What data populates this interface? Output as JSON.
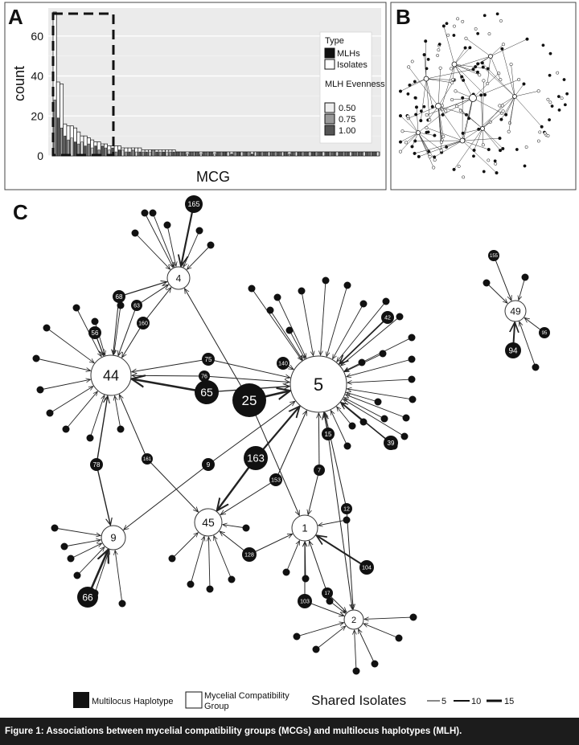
{
  "panels": {
    "a": "A",
    "b": "B",
    "c": "C"
  },
  "chart_data": {
    "type": "bar",
    "xlabel": "MCG",
    "ylabel": "count",
    "yticks": [
      0,
      20,
      40,
      60
    ],
    "ylim": [
      0,
      74
    ],
    "legend": {
      "type_title": "Type",
      "type_items": [
        "MLHs",
        "Isolates"
      ],
      "evenness_title": "MLH Evenness",
      "evenness_items": [
        "0.50",
        "0.75",
        "1.00"
      ]
    },
    "isolates": [
      72,
      37,
      36,
      16,
      15,
      15,
      14,
      12,
      10,
      10,
      9,
      8,
      7,
      7,
      6,
      6,
      5,
      5,
      5,
      5,
      4,
      4,
      4,
      4,
      4,
      4,
      3,
      3,
      3,
      3,
      3,
      3,
      3,
      3,
      3,
      3,
      2,
      2,
      2,
      2,
      2,
      2,
      2,
      2,
      2,
      2,
      2,
      2,
      2,
      2,
      2,
      2,
      2,
      2,
      2,
      2,
      2,
      2,
      2,
      2,
      2,
      2,
      2,
      2,
      2,
      2,
      2,
      2,
      2,
      2,
      2,
      2,
      2,
      2,
      2,
      2,
      2,
      2,
      2,
      2,
      2,
      2,
      2,
      2,
      2,
      2,
      2,
      2,
      2,
      2,
      2,
      2,
      2,
      2,
      2,
      2
    ],
    "mlhs": [
      28,
      19,
      14,
      10,
      8,
      9,
      7,
      6,
      7,
      5,
      6,
      4,
      5,
      3,
      5,
      4,
      3,
      4,
      2,
      3,
      3,
      2,
      2,
      3,
      2,
      2,
      2,
      2,
      2,
      3,
      2,
      2,
      2,
      2,
      2,
      2,
      2,
      2,
      2,
      1,
      2,
      2,
      2,
      1,
      2,
      2,
      2,
      1,
      2,
      2,
      2,
      2,
      1,
      2,
      2,
      2,
      2,
      2,
      1,
      2,
      2,
      2,
      2,
      2,
      2,
      2,
      2,
      2,
      2,
      1,
      2,
      2,
      2,
      2,
      2,
      2,
      2,
      2,
      2,
      2,
      2,
      2,
      2,
      2,
      2,
      2,
      2,
      2,
      2,
      2,
      2,
      2,
      2,
      2,
      2,
      2
    ],
    "evenness": [
      0.75,
      1.0,
      0.75,
      1.0,
      0.75,
      0.5,
      1.0,
      0.75,
      0.5,
      1.0,
      0.75,
      0.5,
      1.0,
      0.75,
      1.0,
      0.75,
      0.5,
      1.0,
      0.75,
      1.0,
      0.5,
      0.75,
      1.0,
      0.75,
      0.5,
      1.0,
      0.75,
      1.0,
      0.5,
      0.75,
      1.0,
      0.75,
      1.0,
      0.5,
      0.75,
      1.0,
      1.0,
      0.75,
      1.0,
      0.5,
      1.0,
      0.75,
      1.0,
      0.5,
      1.0,
      0.75,
      1.0,
      0.5,
      1.0,
      0.75,
      1.0,
      0.5,
      1.0,
      0.75,
      1.0,
      0.5,
      1.0,
      0.75,
      1.0,
      0.5,
      1.0,
      0.75,
      1.0,
      0.5,
      1.0,
      0.75,
      1.0,
      0.5,
      1.0,
      0.75,
      1.0,
      0.5,
      1.0,
      0.75,
      1.0,
      0.5,
      1.0,
      0.75,
      1.0,
      0.5,
      1.0,
      0.75,
      1.0,
      0.5,
      1.0,
      0.75,
      1.0,
      0.5,
      1.0,
      0.75,
      1.0,
      0.5,
      1.0,
      0.75,
      1.0,
      0.5
    ]
  },
  "network": {
    "mcg_nodes": [
      {
        "label": "44"
      },
      {
        "label": "5"
      },
      {
        "label": "4"
      },
      {
        "label": "9"
      },
      {
        "label": "45"
      },
      {
        "label": "1"
      },
      {
        "label": "2"
      },
      {
        "label": "49"
      }
    ],
    "mlh_labels": [
      "165",
      "68",
      "63",
      "160",
      "56",
      "75",
      "76",
      "65",
      "25",
      "140",
      "42",
      "15",
      "39",
      "163",
      "9",
      "161",
      "78",
      "153",
      "7",
      "12",
      "128",
      "104",
      "103",
      "17",
      "66",
      "155",
      "95",
      "94"
    ]
  },
  "legend_c": {
    "mlh": "Multilocus Haplotype",
    "mcg_line1": "Mycelial Compatibility",
    "mcg_line2": "Group",
    "shared_title": "Shared Isolates",
    "shared_values": [
      "5",
      "10",
      "15"
    ]
  },
  "caption": "Figure 1: Associations between mycelial compatibility groups (MCGs) and multilocus haplotypes (MLH)."
}
